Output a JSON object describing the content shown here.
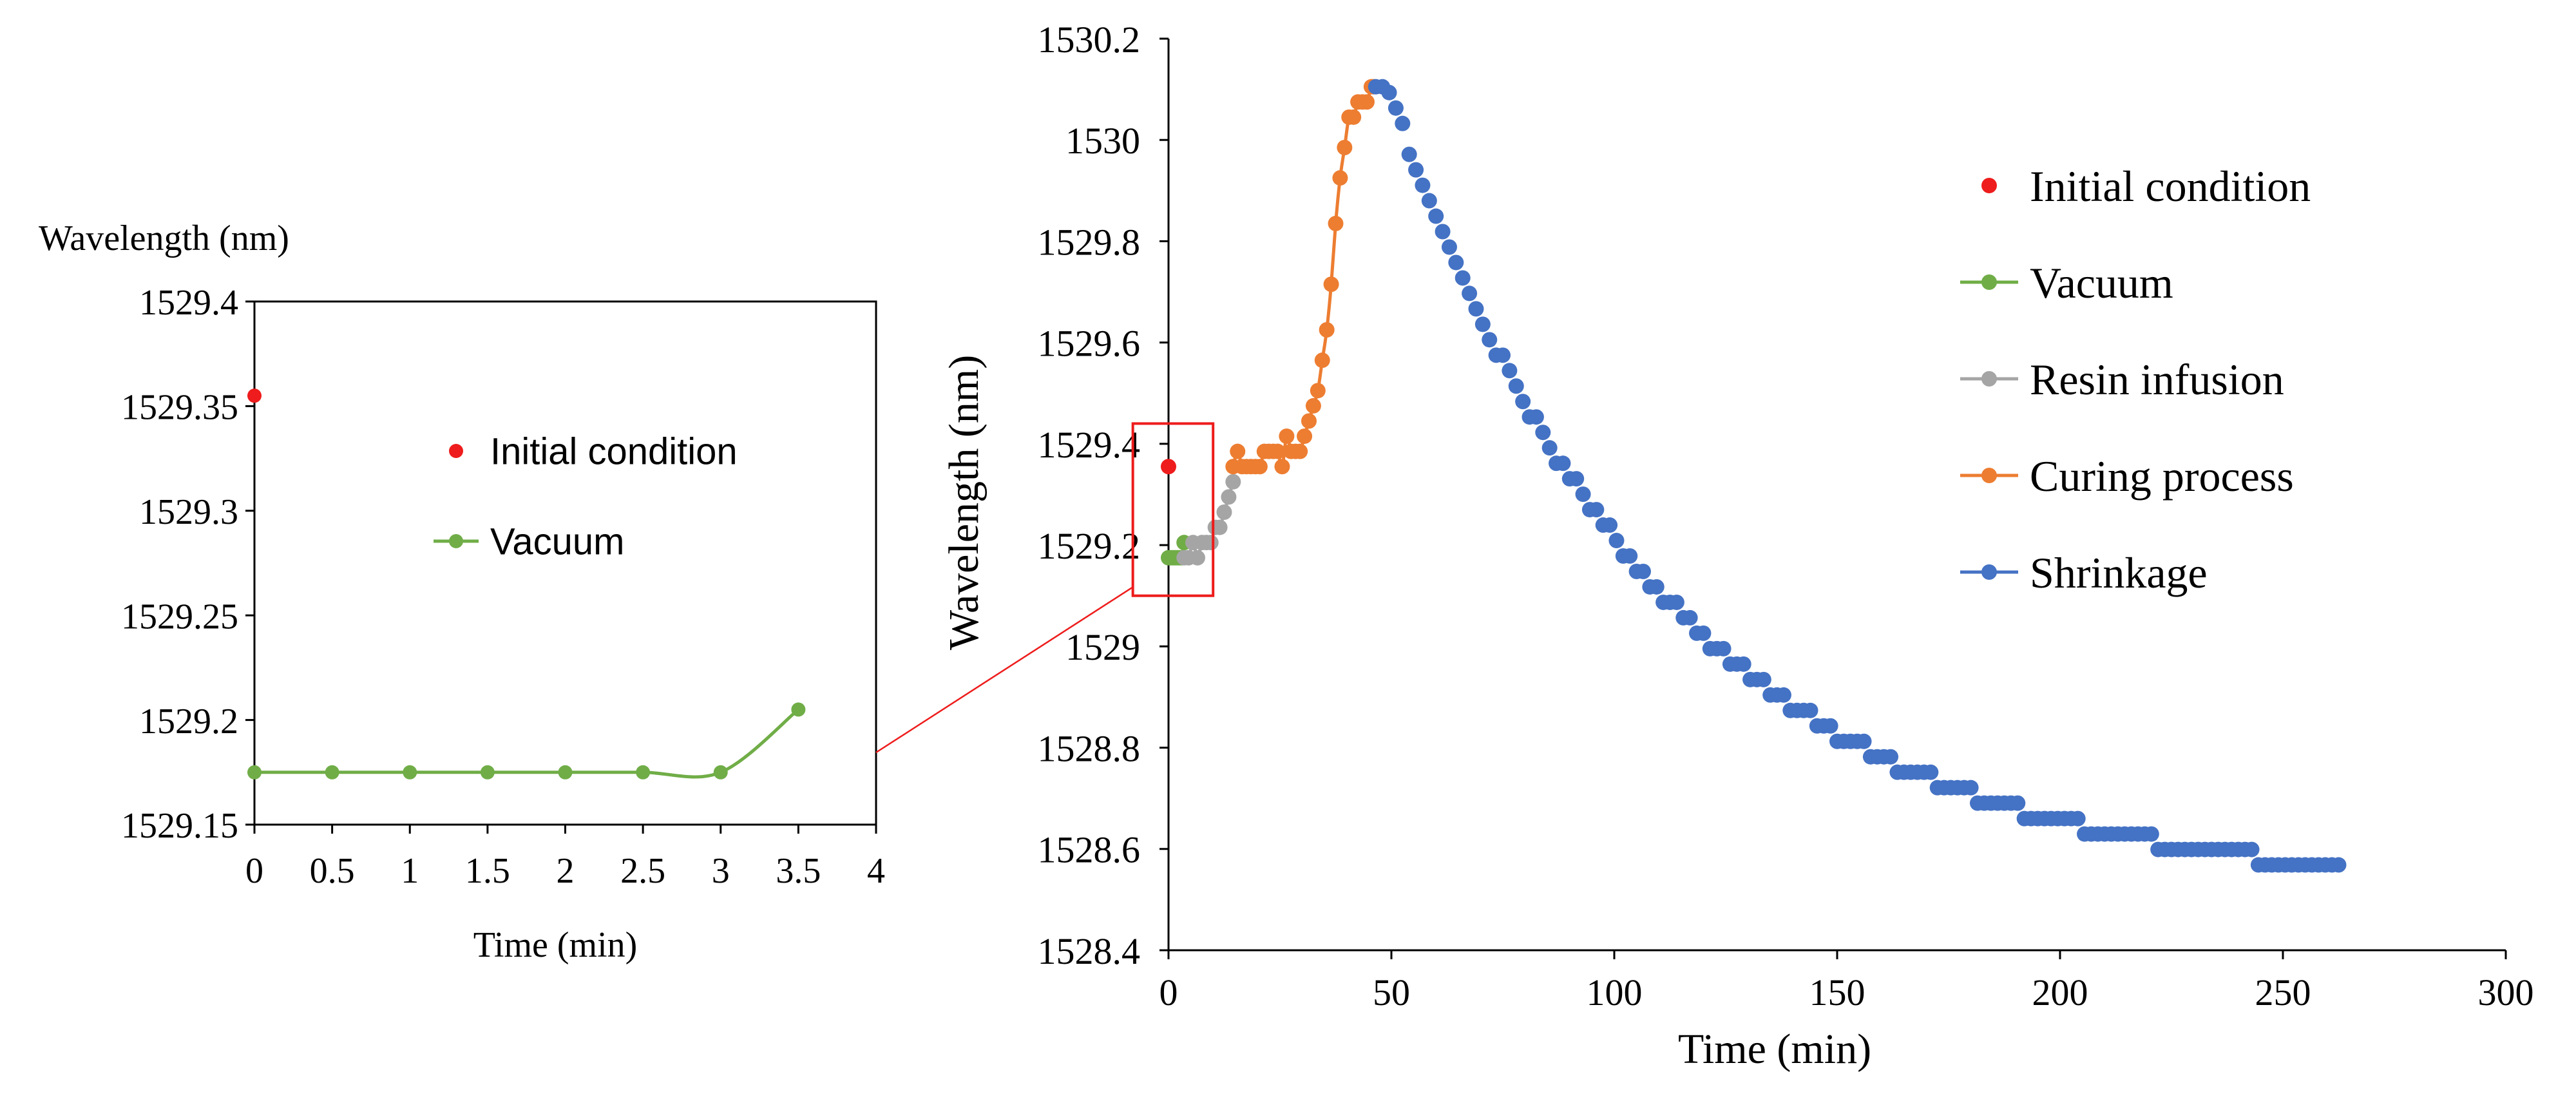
{
  "colors": {
    "initial": "#ee1c1c",
    "vacuum": "#70ad47",
    "resin": "#a5a5a5",
    "curing": "#ed7d31",
    "shrinkage": "#4472c4",
    "callout": "#ee1c1c",
    "axis": "#000000"
  },
  "chart_data": [
    {
      "id": "inset",
      "type": "line",
      "title": "",
      "ylabel": "Wavelength (nm)",
      "xlabel": "Time (min)",
      "xlim": [
        0,
        4
      ],
      "ylim": [
        1529.15,
        1529.4
      ],
      "xticks": [
        {
          "value": 0,
          "label": "0"
        },
        {
          "value": 0.5,
          "label": "0.5"
        },
        {
          "value": 1,
          "label": "1"
        },
        {
          "value": 1.5,
          "label": "1.5"
        },
        {
          "value": 2,
          "label": "2"
        },
        {
          "value": 2.5,
          "label": "2.5"
        },
        {
          "value": 3,
          "label": "3"
        },
        {
          "value": 3.5,
          "label": "3.5"
        },
        {
          "value": 4,
          "label": "4"
        }
      ],
      "yticks": [
        {
          "value": 1529.15,
          "label": "1529.15"
        },
        {
          "value": 1529.2,
          "label": "1529.2"
        },
        {
          "value": 1529.25,
          "label": "1529.25"
        },
        {
          "value": 1529.3,
          "label": "1529.3"
        },
        {
          "value": 1529.35,
          "label": "1529.35"
        },
        {
          "value": 1529.4,
          "label": "1529.4"
        }
      ],
      "legend_position": "center-right",
      "grid": false,
      "series": [
        {
          "name": "Initial condition",
          "key": "initial",
          "style": "marker",
          "x": [
            0
          ],
          "y": [
            1529.355
          ]
        },
        {
          "name": "Vacuum",
          "key": "vacuum",
          "style": "line-marker",
          "x": [
            0,
            0.5,
            1,
            1.5,
            2,
            2.5,
            3,
            3.5
          ],
          "y": [
            1529.175,
            1529.175,
            1529.175,
            1529.175,
            1529.175,
            1529.175,
            1529.175,
            1529.205
          ]
        }
      ]
    },
    {
      "id": "main",
      "type": "line",
      "title": "",
      "ylabel": "Wavelength  (nm)",
      "xlabel": "Time (min)",
      "xlim": [
        0,
        300
      ],
      "ylim": [
        1528.4,
        1530.2
      ],
      "xticks": [
        {
          "value": 0,
          "label": "0"
        },
        {
          "value": 50,
          "label": "50"
        },
        {
          "value": 100,
          "label": "100"
        },
        {
          "value": 150,
          "label": "150"
        },
        {
          "value": 200,
          "label": "200"
        },
        {
          "value": 250,
          "label": "250"
        },
        {
          "value": 300,
          "label": "300"
        }
      ],
      "yticks": [
        {
          "value": 1528.4,
          "label": "1528.4"
        },
        {
          "value": 1528.6,
          "label": "1528.6"
        },
        {
          "value": 1528.8,
          "label": "1528.8"
        },
        {
          "value": 1529,
          "label": "1529"
        },
        {
          "value": 1529.2,
          "label": "1529.2"
        },
        {
          "value": 1529.4,
          "label": "1529.4"
        },
        {
          "value": 1529.6,
          "label": "1529.6"
        },
        {
          "value": 1529.8,
          "label": "1529.8"
        },
        {
          "value": 1530,
          "label": "1530"
        },
        {
          "value": 1530.2,
          "label": "1530.2"
        }
      ],
      "legend_position": "top-right",
      "grid": false,
      "zoom_box": {
        "x": [
          -8,
          10
        ],
        "y": [
          1529.1,
          1529.44
        ]
      },
      "series": [
        {
          "name": "Initial condition",
          "key": "initial",
          "style": "marker",
          "x": [
            0
          ],
          "y": [
            1529.355
          ]
        },
        {
          "name": "Vacuum",
          "key": "vacuum",
          "style": "line-marker",
          "x": [
            0,
            0.5,
            1,
            1.5,
            2,
            2.5,
            3,
            3.5
          ],
          "y": [
            1529.175,
            1529.175,
            1529.175,
            1529.175,
            1529.175,
            1529.175,
            1529.175,
            1529.205
          ]
        },
        {
          "name": "Resin infusion",
          "key": "resin",
          "style": "line-marker",
          "x": [
            3.5,
            4.5,
            5.5,
            6.5,
            7.5,
            8.5,
            9.5,
            10.5,
            11.5,
            12.5,
            13.5,
            14.5
          ],
          "y": [
            1529.175,
            1529.175,
            1529.205,
            1529.175,
            1529.205,
            1529.205,
            1529.205,
            1529.235,
            1529.235,
            1529.265,
            1529.295,
            1529.325
          ]
        },
        {
          "name": "Curing process",
          "key": "curing",
          "style": "line-marker",
          "x": [
            14.5,
            15.5,
            16.5,
            17.5,
            18.5,
            19.5,
            20.5,
            21.5,
            22.5,
            23.5,
            24.5,
            25.5,
            26.5,
            27.5,
            28.5,
            29.5,
            30.5,
            31.5,
            32.5,
            33.5,
            34.5,
            35.5,
            36.5,
            37.5,
            38.5,
            39.5,
            40.5,
            41.5,
            42.5,
            43.5,
            44.5,
            45.5,
            46
          ],
          "y": [
            1529.355,
            1529.385,
            1529.355,
            1529.355,
            1529.355,
            1529.355,
            1529.355,
            1529.385,
            1529.385,
            1529.385,
            1529.385,
            1529.355,
            1529.415,
            1529.385,
            1529.385,
            1529.385,
            1529.415,
            1529.445,
            1529.475,
            1529.505,
            1529.565,
            1529.625,
            1529.715,
            1529.835,
            1529.925,
            1529.985,
            1530.045,
            1530.045,
            1530.075,
            1530.075,
            1530.075,
            1530.105,
            1530.105
          ]
        },
        {
          "name": "Shrinkage",
          "key": "shrinkage",
          "style": "marker",
          "generator": "decay",
          "x_range": [
            46.5,
            263
          ],
          "step": 1.5,
          "plateau_end": 49,
          "peak": 1530.105,
          "asymptote": 1528.515,
          "tau": 62,
          "quantum": 0.0305
        }
      ]
    }
  ],
  "inset_legend": {
    "items": [
      {
        "label": "Initial condition",
        "key": "initial",
        "style": "marker"
      },
      {
        "label": "Vacuum",
        "key": "vacuum",
        "style": "line-marker"
      }
    ]
  },
  "main_legend": {
    "items": [
      {
        "label": "Initial condition",
        "key": "initial",
        "style": "marker"
      },
      {
        "label": "Vacuum",
        "key": "vacuum",
        "style": "line-marker"
      },
      {
        "label": "Resin infusion",
        "key": "resin",
        "style": "line-marker"
      },
      {
        "label": "Curing process",
        "key": "curing",
        "style": "line-marker"
      },
      {
        "label": "Shrinkage",
        "key": "shrinkage",
        "style": "line-marker"
      }
    ]
  }
}
